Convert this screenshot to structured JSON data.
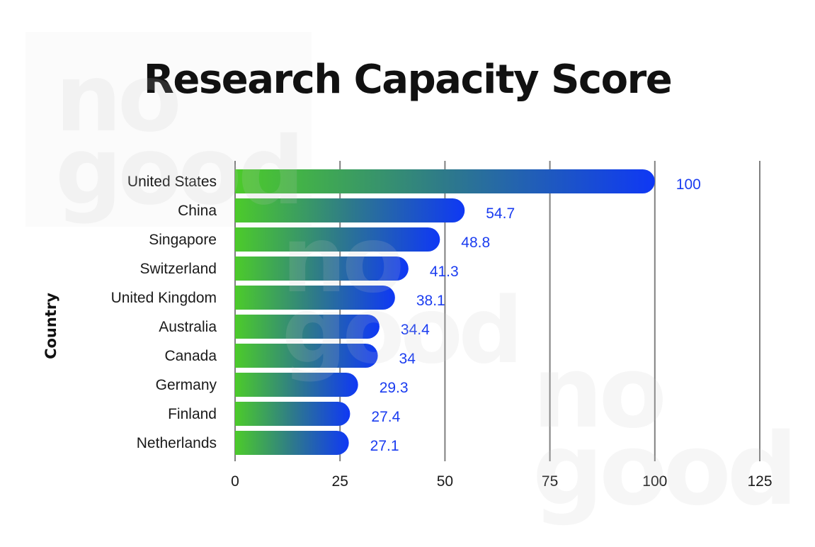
{
  "watermark": {
    "text": "no\ngood"
  },
  "chart_data": {
    "type": "bar",
    "orientation": "horizontal",
    "title": "Research Capacity Score",
    "xlabel": "",
    "ylabel": "Country",
    "categories": [
      "United States",
      "China",
      "Singapore",
      "Switzerland",
      "United Kingdom",
      "Australia",
      "Canada",
      "Germany",
      "Finland",
      "Netherlands"
    ],
    "values": [
      100,
      54.7,
      48.8,
      41.3,
      38.1,
      34.4,
      34,
      29.3,
      27.4,
      27.1
    ],
    "value_labels": [
      "100",
      "54.7",
      "48.8",
      "41.3",
      "38.1",
      "34.4",
      "34",
      "29.3",
      "27.4",
      "27.1"
    ],
    "xlim": [
      0,
      125
    ],
    "xticks": [
      0,
      25,
      50,
      75,
      100,
      125
    ],
    "xtick_labels": [
      "0",
      "25",
      "50",
      "75",
      "100",
      "125"
    ],
    "grid": "vertical",
    "legend": "none",
    "colors": {
      "gradient_start": "#4ccb2a",
      "gradient_end": "#0f38f5",
      "value_label": "#1a3cf0",
      "grid": "#808080"
    }
  }
}
